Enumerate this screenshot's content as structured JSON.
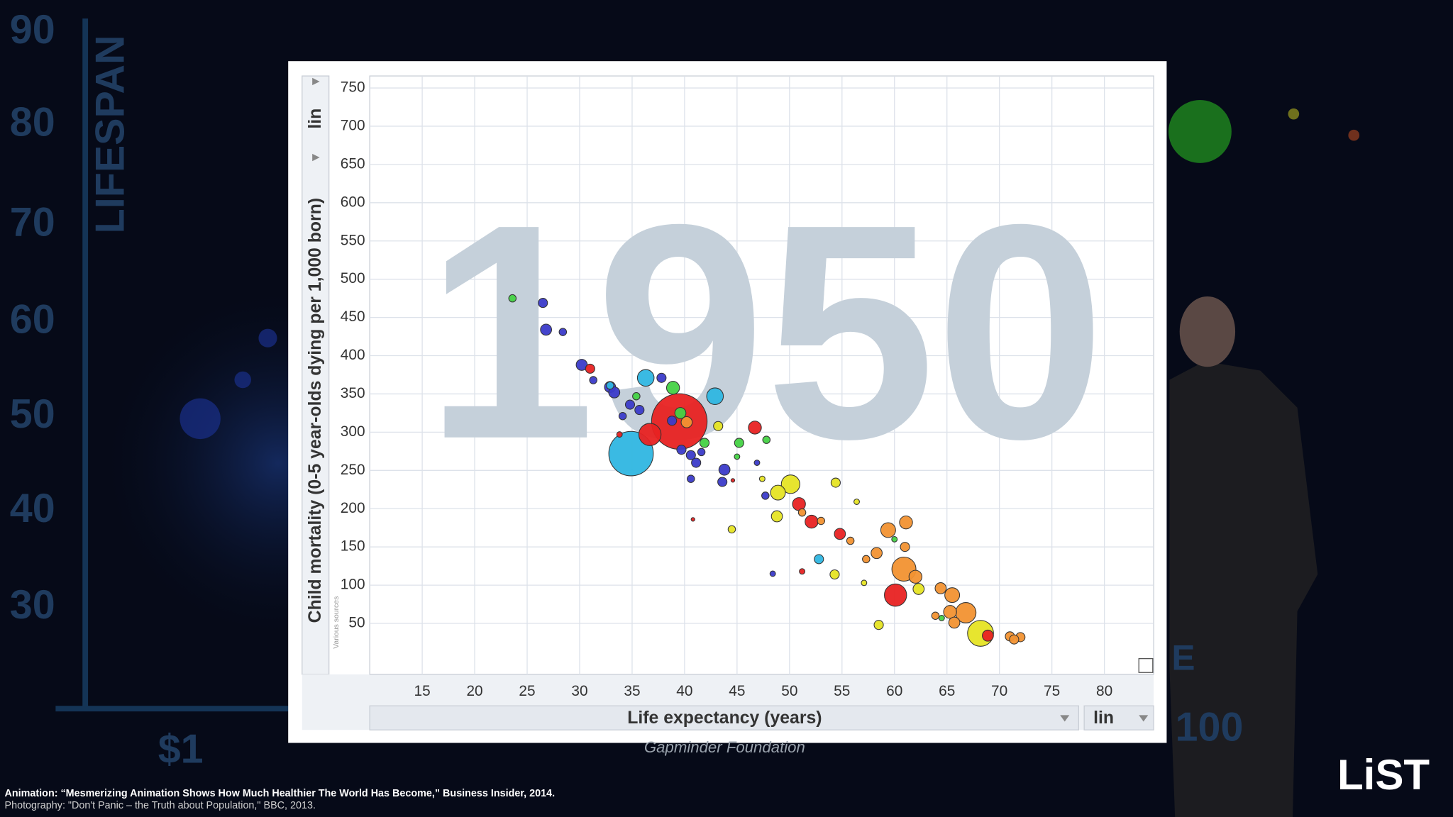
{
  "background": {
    "axis_title": "LIFESPAN",
    "ticks": [
      "90",
      "80",
      "70",
      "60",
      "50",
      "40",
      "30"
    ],
    "x_label_left": "$1",
    "x_label_right": "100",
    "fragment": "E",
    "caption": "Gapminder Foundation",
    "credits": [
      "Animation: “Mesmerizing Animation Shows How Much Healthier The World Has Become,” Business Insider, 2014.",
      "Photography: \"Don't Panic – the Truth about Population,\" BBC, 2013."
    ],
    "logo": "LiST"
  },
  "chart_data": {
    "type": "bubble",
    "year": "1950",
    "x_label": "Life expectancy (years)",
    "y_label": "Child mortality (0-5 year-olds dying per 1,000 born)",
    "x_scale": "lin",
    "y_scale": "lin",
    "source": "Various sources",
    "xlim": [
      10,
      84.7
    ],
    "ylim": [
      -16.6,
      765.7
    ],
    "xticks": [
      15,
      20,
      25,
      30,
      35,
      40,
      45,
      50,
      55,
      60,
      65,
      70,
      75,
      80
    ],
    "yticks": [
      50,
      100,
      150,
      200,
      250,
      300,
      350,
      400,
      450,
      500,
      550,
      600,
      650,
      700,
      750
    ],
    "grid": true,
    "series": [
      {
        "color": "#3b3bc9",
        "x": [
          26.5,
          26.8,
          28.4,
          30.2,
          31.3,
          32.9,
          33.3,
          34.8,
          35.7,
          37.8,
          38.8,
          40.6,
          41.1,
          40.6,
          43.6,
          43.8,
          46.9,
          47.7,
          48.4,
          34.1,
          39.7,
          41.6
        ],
        "values": [
          469,
          434,
          431,
          388,
          368,
          359,
          352,
          336,
          329,
          371,
          315,
          270,
          260,
          239,
          235,
          251,
          260,
          217,
          115,
          321,
          277,
          274
        ],
        "sizes": [
          5,
          6,
          4,
          6,
          4,
          6,
          6,
          5,
          5,
          5,
          5,
          5,
          5,
          4,
          5,
          6,
          3,
          4,
          3,
          4,
          5,
          4
        ]
      },
      {
        "color": "#e82222",
        "x": [
          39.5,
          36.7,
          46.7,
          50.9,
          52.1,
          54.8,
          60.1,
          68.9,
          31.0,
          33.8,
          40.8,
          51.2,
          44.6
        ],
        "values": [
          314,
          297,
          306,
          206,
          183,
          167,
          87,
          34,
          383,
          297,
          186,
          118,
          237
        ],
        "sizes": [
          30,
          12,
          7,
          7,
          7,
          6,
          12,
          6,
          5,
          3,
          2,
          3,
          2
        ]
      },
      {
        "color": "#2fb6e2",
        "x": [
          34.9,
          42.9,
          36.3,
          52.8,
          32.9
        ],
        "values": [
          272,
          347,
          371,
          134,
          361
        ],
        "sizes": [
          24,
          9,
          9,
          5,
          4
        ]
      },
      {
        "color": "#44d244",
        "x": [
          23.6,
          38.9,
          39.6,
          45.2,
          47.8,
          35.4,
          41.9,
          45.0,
          64.5,
          60.0
        ],
        "values": [
          475,
          358,
          325,
          286,
          290,
          347,
          286,
          268,
          57,
          160
        ],
        "sizes": [
          4,
          7,
          6,
          5,
          4,
          4,
          5,
          3,
          3,
          3
        ]
      },
      {
        "color": "#e6e424",
        "x": [
          50.1,
          48.9,
          54.4,
          48.8,
          43.2,
          44.5,
          54.3,
          58.5,
          68.2,
          62.3,
          57.1,
          47.4,
          56.4
        ],
        "values": [
          232,
          221,
          234,
          190,
          308,
          173,
          114,
          48,
          37,
          95,
          103,
          239,
          209
        ],
        "sizes": [
          10,
          8,
          5,
          6,
          5,
          4,
          5,
          5,
          14,
          6,
          3,
          3,
          3
        ]
      },
      {
        "color": "#f29232",
        "x": [
          59.4,
          61.1,
          61.0,
          60.9,
          62.0,
          64.4,
          65.5,
          66.8,
          65.3,
          65.7,
          71.0,
          72.0,
          71.4,
          58.3,
          57.3,
          55.8,
          51.2,
          53.0,
          40.2,
          63.9
        ],
        "values": [
          172,
          182,
          150,
          121,
          111,
          96,
          87,
          64,
          65,
          51,
          33,
          32,
          29,
          142,
          134,
          158,
          195,
          184,
          313,
          60
        ],
        "sizes": [
          8,
          7,
          5,
          13,
          7,
          6,
          8,
          11,
          7,
          6,
          5,
          5,
          5,
          6,
          4,
          4,
          4,
          4,
          6,
          4
        ]
      }
    ]
  }
}
